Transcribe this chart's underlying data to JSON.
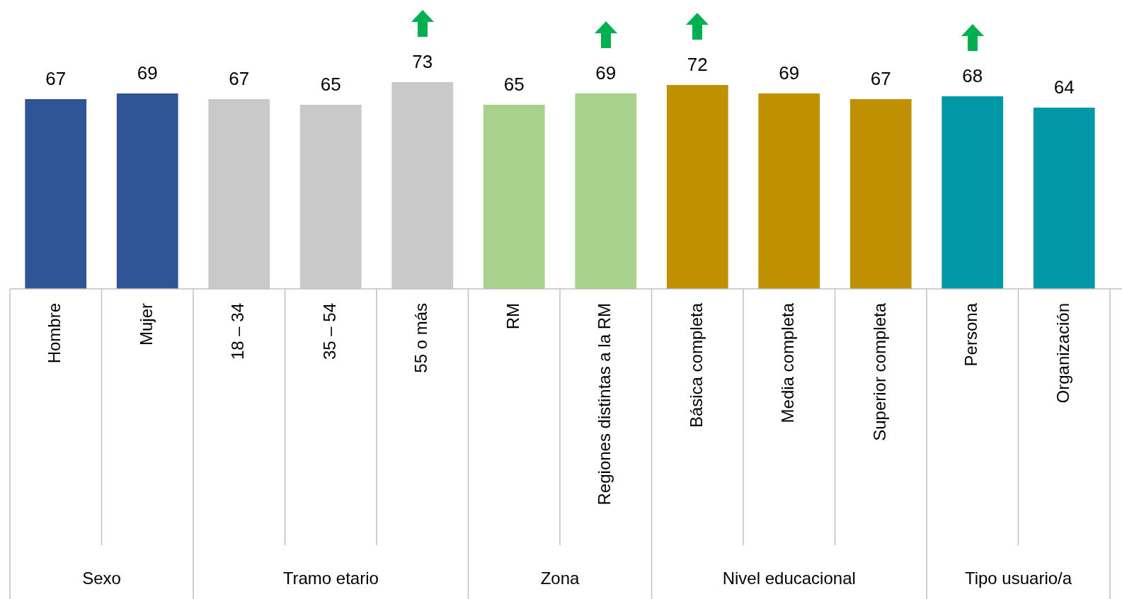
{
  "chart_data": {
    "type": "bar",
    "categories": [
      "Hombre",
      "Mujer",
      "18 – 34",
      "35 – 54",
      "55 o más",
      "RM",
      "Regiones distintas a la RM",
      "Básica completa",
      "Media completa",
      "Superior completa",
      "Persona",
      "Organización"
    ],
    "values": [
      67,
      69,
      67,
      65,
      73,
      65,
      69,
      72,
      69,
      67,
      68,
      64
    ],
    "colors": [
      "#2f5597",
      "#2f5597",
      "#c9c9c9",
      "#c9c9c9",
      "#c9c9c9",
      "#a9d18e",
      "#a9d18e",
      "#bf9000",
      "#bf9000",
      "#bf9000",
      "#0097a7",
      "#0097a7"
    ],
    "data_labels": true,
    "legend": false,
    "annotations": [
      "Sexo",
      "Tramo etario",
      "Zona",
      "Nivel educacional",
      "Tipo usuario/a"
    ]
  }
}
